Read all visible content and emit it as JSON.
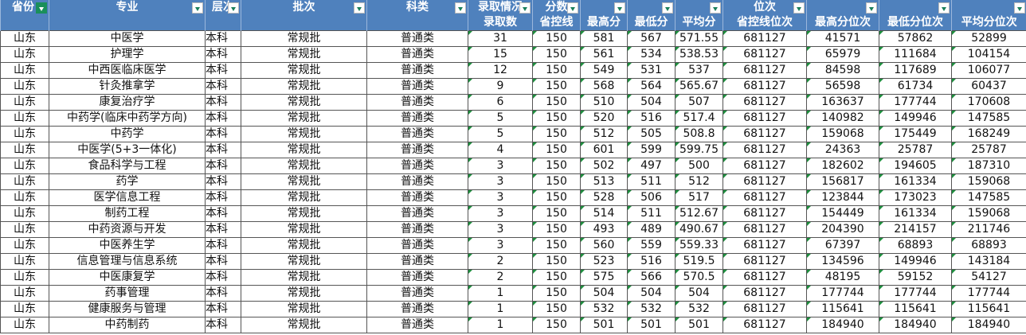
{
  "colors": {
    "header_bg": "#4F81BD",
    "filter_active": "#1a8f5a"
  },
  "header_top": [
    {
      "label": "省份",
      "span": 1,
      "rows": 2,
      "filter": "active"
    },
    {
      "label": "专业",
      "rows": 2,
      "filter": "dropdown"
    },
    {
      "label": "层次",
      "rows": 2,
      "filter": "dropdown"
    },
    {
      "label": "批次",
      "rows": 2,
      "filter": "dropdown"
    },
    {
      "label": "科类",
      "rows": 2,
      "filter": "dropdown"
    },
    {
      "label": "录取情况",
      "filter": "dropdown"
    },
    {
      "label": "分数",
      "filter": "dropdown"
    },
    {
      "label": "",
      "filter": "dropdown"
    },
    {
      "label": "",
      "filter": "dropdown"
    },
    {
      "label": "",
      "filter": "dropdown"
    },
    {
      "label": "位次",
      "filter": "dropdown"
    },
    {
      "label": "",
      "filter": "dropdown"
    },
    {
      "label": "",
      "filter": "dropdown"
    },
    {
      "label": "",
      "filter": "dropdown"
    }
  ],
  "header_sub": [
    "录取数",
    "省控线",
    "最高分",
    "最低分",
    "平均分",
    "省控线位次",
    "最高分位次",
    "最低分位次",
    "平均分位次"
  ],
  "rows": [
    [
      "山东",
      "中医学",
      "本科",
      "常规批",
      "普通类",
      "31",
      "150",
      "581",
      "567",
      "571.55",
      "681127",
      "41571",
      "57862",
      "52899"
    ],
    [
      "山东",
      "护理学",
      "本科",
      "常规批",
      "普通类",
      "15",
      "150",
      "561",
      "534",
      "538.53",
      "681127",
      "65979",
      "111684",
      "104154"
    ],
    [
      "山东",
      "中西医临床医学",
      "本科",
      "常规批",
      "普通类",
      "12",
      "150",
      "549",
      "531",
      "537",
      "681127",
      "84598",
      "117689",
      "106077"
    ],
    [
      "山东",
      "针灸推拿学",
      "本科",
      "常规批",
      "普通类",
      "9",
      "150",
      "568",
      "564",
      "565.67",
      "681127",
      "56598",
      "61734",
      "60437"
    ],
    [
      "山东",
      "康复治疗学",
      "本科",
      "常规批",
      "普通类",
      "6",
      "150",
      "510",
      "504",
      "507",
      "681127",
      "163637",
      "177744",
      "170608"
    ],
    [
      "山东",
      "中药学(临床中药学方向)",
      "本科",
      "常规批",
      "普通类",
      "5",
      "150",
      "520",
      "516",
      "517.4",
      "681127",
      "140982",
      "149946",
      "147585"
    ],
    [
      "山东",
      "中药学",
      "本科",
      "常规批",
      "普通类",
      "5",
      "150",
      "512",
      "505",
      "508.8",
      "681127",
      "159068",
      "175449",
      "168249"
    ],
    [
      "山东",
      "中医学(5+3一体化)",
      "本科",
      "常规批",
      "普通类",
      "4",
      "150",
      "601",
      "599",
      "599.75",
      "681127",
      "24363",
      "25787",
      "25787"
    ],
    [
      "山东",
      "食品科学与工程",
      "本科",
      "常规批",
      "普通类",
      "3",
      "150",
      "502",
      "497",
      "500",
      "681127",
      "182602",
      "194605",
      "187310"
    ],
    [
      "山东",
      "药学",
      "本科",
      "常规批",
      "普通类",
      "3",
      "150",
      "513",
      "511",
      "512",
      "681127",
      "156817",
      "161334",
      "159068"
    ],
    [
      "山东",
      "医学信息工程",
      "本科",
      "常规批",
      "普通类",
      "3",
      "150",
      "528",
      "506",
      "517",
      "681127",
      "123844",
      "173023",
      "147585"
    ],
    [
      "山东",
      "制药工程",
      "本科",
      "常规批",
      "普通类",
      "3",
      "150",
      "514",
      "511",
      "512.67",
      "681127",
      "154449",
      "161334",
      "159068"
    ],
    [
      "山东",
      "中药资源与开发",
      "本科",
      "常规批",
      "普通类",
      "3",
      "150",
      "493",
      "489",
      "490.67",
      "681127",
      "204390",
      "214157",
      "211746"
    ],
    [
      "山东",
      "中医养生学",
      "本科",
      "常规批",
      "普通类",
      "3",
      "150",
      "560",
      "559",
      "559.33",
      "681127",
      "67397",
      "68893",
      "68893"
    ],
    [
      "山东",
      "信息管理与信息系统",
      "本科",
      "常规批",
      "普通类",
      "2",
      "150",
      "523",
      "516",
      "519.5",
      "681127",
      "134596",
      "149946",
      "143184"
    ],
    [
      "山东",
      "中医康复学",
      "本科",
      "常规批",
      "普通类",
      "2",
      "150",
      "575",
      "566",
      "570.5",
      "681127",
      "48195",
      "59152",
      "54127"
    ],
    [
      "山东",
      "药事管理",
      "本科",
      "常规批",
      "普通类",
      "1",
      "150",
      "504",
      "504",
      "504",
      "681127",
      "177744",
      "177744",
      "177744"
    ],
    [
      "山东",
      "健康服务与管理",
      "本科",
      "常规批",
      "普通类",
      "1",
      "150",
      "532",
      "532",
      "532",
      "681127",
      "115641",
      "115641",
      "115641"
    ],
    [
      "山东",
      "中药制药",
      "本科",
      "常规批",
      "普通类",
      "1",
      "150",
      "501",
      "501",
      "501",
      "681127",
      "184940",
      "184940",
      "184940"
    ]
  ]
}
